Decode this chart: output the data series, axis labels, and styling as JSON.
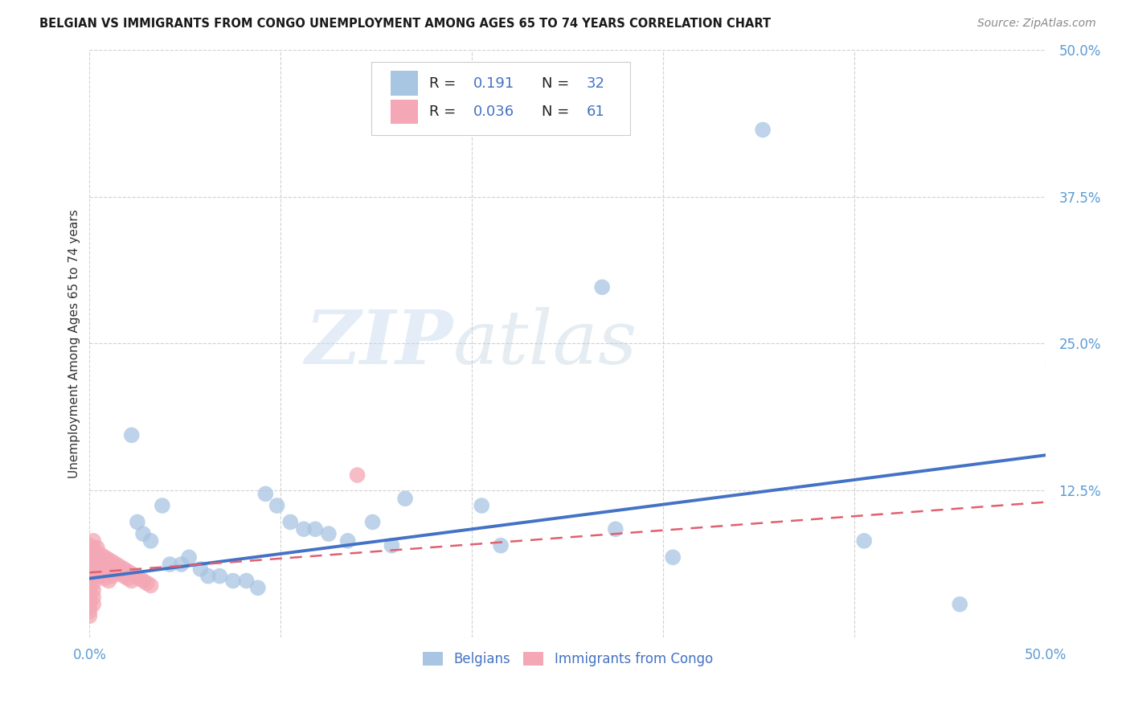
{
  "title": "BELGIAN VS IMMIGRANTS FROM CONGO UNEMPLOYMENT AMONG AGES 65 TO 74 YEARS CORRELATION CHART",
  "source": "Source: ZipAtlas.com",
  "ylabel": "Unemployment Among Ages 65 to 74 years",
  "xlim": [
    0.0,
    0.5
  ],
  "ylim": [
    0.0,
    0.5
  ],
  "ytick_vals": [
    0.0,
    0.125,
    0.25,
    0.375,
    0.5
  ],
  "ytick_labels": [
    "",
    "12.5%",
    "25.0%",
    "37.5%",
    "50.0%"
  ],
  "xtick_vals": [
    0.0,
    0.1,
    0.2,
    0.3,
    0.4,
    0.5
  ],
  "watermark_zip": "ZIP",
  "watermark_atlas": "atlas",
  "blue_R": "0.191",
  "blue_N": "32",
  "pink_R": "0.036",
  "pink_N": "61",
  "blue_color": "#a8c5e2",
  "blue_line_color": "#4472c4",
  "pink_color": "#f4a7b5",
  "pink_line_color": "#e06070",
  "tick_color": "#5b9bd5",
  "title_fontsize": 10.5,
  "blue_scatter_x": [
    0.022,
    0.025,
    0.028,
    0.032,
    0.038,
    0.042,
    0.048,
    0.052,
    0.058,
    0.062,
    0.068,
    0.075,
    0.082,
    0.088,
    0.092,
    0.098,
    0.105,
    0.112,
    0.118,
    0.125,
    0.135,
    0.148,
    0.158,
    0.165,
    0.205,
    0.215,
    0.268,
    0.275,
    0.305,
    0.352,
    0.405,
    0.455
  ],
  "blue_scatter_y": [
    0.172,
    0.098,
    0.088,
    0.082,
    0.112,
    0.062,
    0.062,
    0.068,
    0.058,
    0.052,
    0.052,
    0.048,
    0.048,
    0.042,
    0.122,
    0.112,
    0.098,
    0.092,
    0.092,
    0.088,
    0.082,
    0.098,
    0.078,
    0.118,
    0.112,
    0.078,
    0.298,
    0.092,
    0.068,
    0.432,
    0.082,
    0.028
  ],
  "pink_scatter_x": [
    0.0,
    0.0,
    0.0,
    0.0,
    0.0,
    0.0,
    0.0,
    0.0,
    0.0,
    0.0,
    0.0,
    0.0,
    0.0,
    0.0,
    0.0,
    0.002,
    0.002,
    0.002,
    0.002,
    0.002,
    0.002,
    0.002,
    0.002,
    0.002,
    0.002,
    0.004,
    0.004,
    0.004,
    0.004,
    0.004,
    0.006,
    0.006,
    0.006,
    0.006,
    0.008,
    0.008,
    0.008,
    0.008,
    0.01,
    0.01,
    0.01,
    0.01,
    0.012,
    0.012,
    0.012,
    0.014,
    0.014,
    0.016,
    0.016,
    0.018,
    0.018,
    0.02,
    0.02,
    0.022,
    0.022,
    0.024,
    0.026,
    0.028,
    0.03,
    0.032,
    0.14
  ],
  "pink_scatter_y": [
    0.072,
    0.068,
    0.062,
    0.058,
    0.054,
    0.05,
    0.046,
    0.042,
    0.038,
    0.034,
    0.03,
    0.026,
    0.022,
    0.018,
    0.078,
    0.082,
    0.076,
    0.07,
    0.064,
    0.058,
    0.052,
    0.046,
    0.04,
    0.034,
    0.028,
    0.076,
    0.07,
    0.064,
    0.058,
    0.052,
    0.07,
    0.064,
    0.058,
    0.052,
    0.068,
    0.062,
    0.056,
    0.05,
    0.066,
    0.06,
    0.054,
    0.048,
    0.064,
    0.058,
    0.052,
    0.062,
    0.056,
    0.06,
    0.054,
    0.058,
    0.052,
    0.056,
    0.05,
    0.054,
    0.048,
    0.052,
    0.05,
    0.048,
    0.046,
    0.044,
    0.138
  ]
}
